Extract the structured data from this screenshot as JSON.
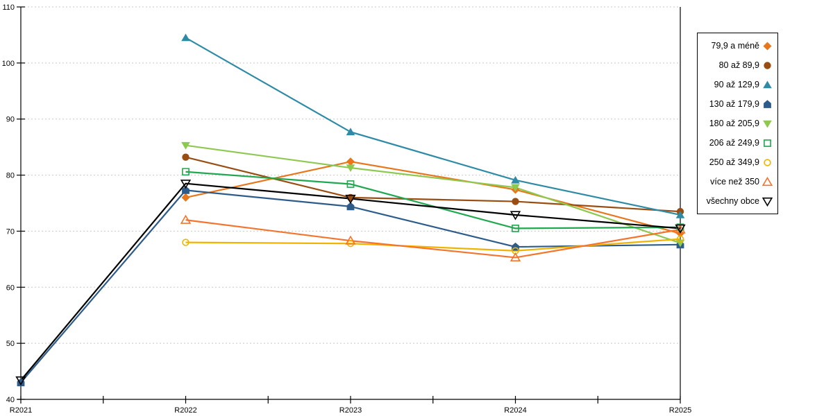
{
  "chart_data": {
    "type": "line",
    "title": "",
    "xlabel": "",
    "ylabel": "",
    "categories": [
      "R2021",
      "R2022",
      "R2023",
      "R2024",
      "R2025"
    ],
    "y_axis": {
      "min": 40,
      "max": 110,
      "step": 10,
      "tick_labels": [
        "40",
        "50",
        "60",
        "70",
        "80",
        "90",
        "100",
        "110"
      ]
    },
    "grid": "horizontal-dashed",
    "legend_position": "right",
    "series": [
      {
        "name": "79,9 a méně",
        "color": "#E8761B",
        "marker": "diamond",
        "filled": true,
        "values": [
          null,
          76.0,
          82.4,
          77.4,
          69.6
        ]
      },
      {
        "name": "80 až 89,9",
        "color": "#9A4D10",
        "marker": "circle",
        "filled": true,
        "values": [
          null,
          83.2,
          76.0,
          75.3,
          73.5
        ]
      },
      {
        "name": "90 až 129,9",
        "color": "#2E8BA6",
        "marker": "triangle-up",
        "filled": true,
        "values": [
          null,
          104.5,
          87.7,
          79.1,
          72.9
        ]
      },
      {
        "name": "130 až 179,9",
        "color": "#2D5C8A",
        "marker": "pentagon",
        "filled": true,
        "values": [
          43.0,
          77.3,
          74.4,
          67.2,
          67.6
        ]
      },
      {
        "name": "180 až 205,9",
        "color": "#8DC94F",
        "marker": "triangle-down",
        "filled": true,
        "values": [
          null,
          85.3,
          81.3,
          77.8,
          67.9
        ]
      },
      {
        "name": "206 až 249,9",
        "color": "#1FA84F",
        "marker": "square",
        "filled": false,
        "values": [
          null,
          80.6,
          78.4,
          70.5,
          70.7
        ]
      },
      {
        "name": "250 až 349,9",
        "color": "#F0B400",
        "marker": "circle",
        "filled": false,
        "values": [
          null,
          68.0,
          67.8,
          66.5,
          68.6
        ]
      },
      {
        "name": "více než 350",
        "color": "#F4742C",
        "marker": "triangle-up",
        "filled": false,
        "values": [
          null,
          72.0,
          68.3,
          65.3,
          70.3
        ]
      },
      {
        "name": "všechny obce",
        "color": "#000000",
        "marker": "triangle-down",
        "filled": false,
        "values": [
          43.4,
          78.5,
          75.8,
          72.9,
          70.5
        ]
      }
    ],
    "colors": {
      "gridline": "#c8c8c8",
      "axis": "#000000",
      "background": "#ffffff"
    }
  }
}
